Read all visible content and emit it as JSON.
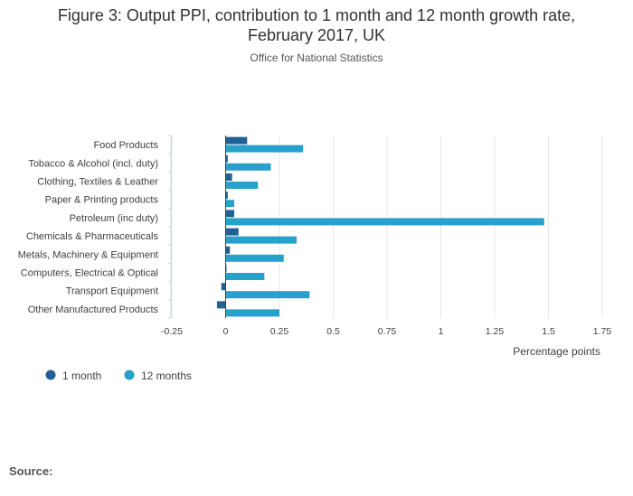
{
  "title_line1": "Figure 3: Output PPI, contribution to 1 month and 12 month growth rate,",
  "title_line2": "February 2017, UK",
  "subtitle": "Office for National Statistics",
  "source_label": "Source:",
  "chart_data": {
    "type": "bar",
    "orientation": "horizontal",
    "categories": [
      "Food Products",
      "Tobacco & Alcohol (incl. duty)",
      "Clothing, Textiles & Leather",
      "Paper & Printing products",
      "Petroleum (inc duty)",
      "Chemicals & Pharmaceuticals",
      "Metals, Machinery & Equipment",
      "Computers, Electrical & Optical",
      "Transport Equipment",
      "Other Manufactured Products"
    ],
    "series": [
      {
        "name": "1 month",
        "color": "#206095",
        "values": [
          0.1,
          0.01,
          0.03,
          0.01,
          0.04,
          0.06,
          0.02,
          0.0,
          -0.02,
          -0.04
        ]
      },
      {
        "name": "12 months",
        "color": "#27a0cc",
        "values": [
          0.36,
          0.21,
          0.15,
          0.04,
          1.48,
          0.33,
          0.27,
          0.18,
          0.39,
          0.25
        ]
      }
    ],
    "xlabel": "Percentage points",
    "xlim": [
      -0.25,
      1.75
    ],
    "xticks": [
      "-0.25",
      "0",
      "0.25",
      "0.5",
      "0.75",
      "1",
      "1.25",
      "1.5",
      "1.75"
    ],
    "xtick_values": [
      -0.25,
      0,
      0.25,
      0.5,
      0.75,
      1,
      1.25,
      1.5,
      1.75
    ],
    "grid": true,
    "legend_position": "bottom-left"
  }
}
